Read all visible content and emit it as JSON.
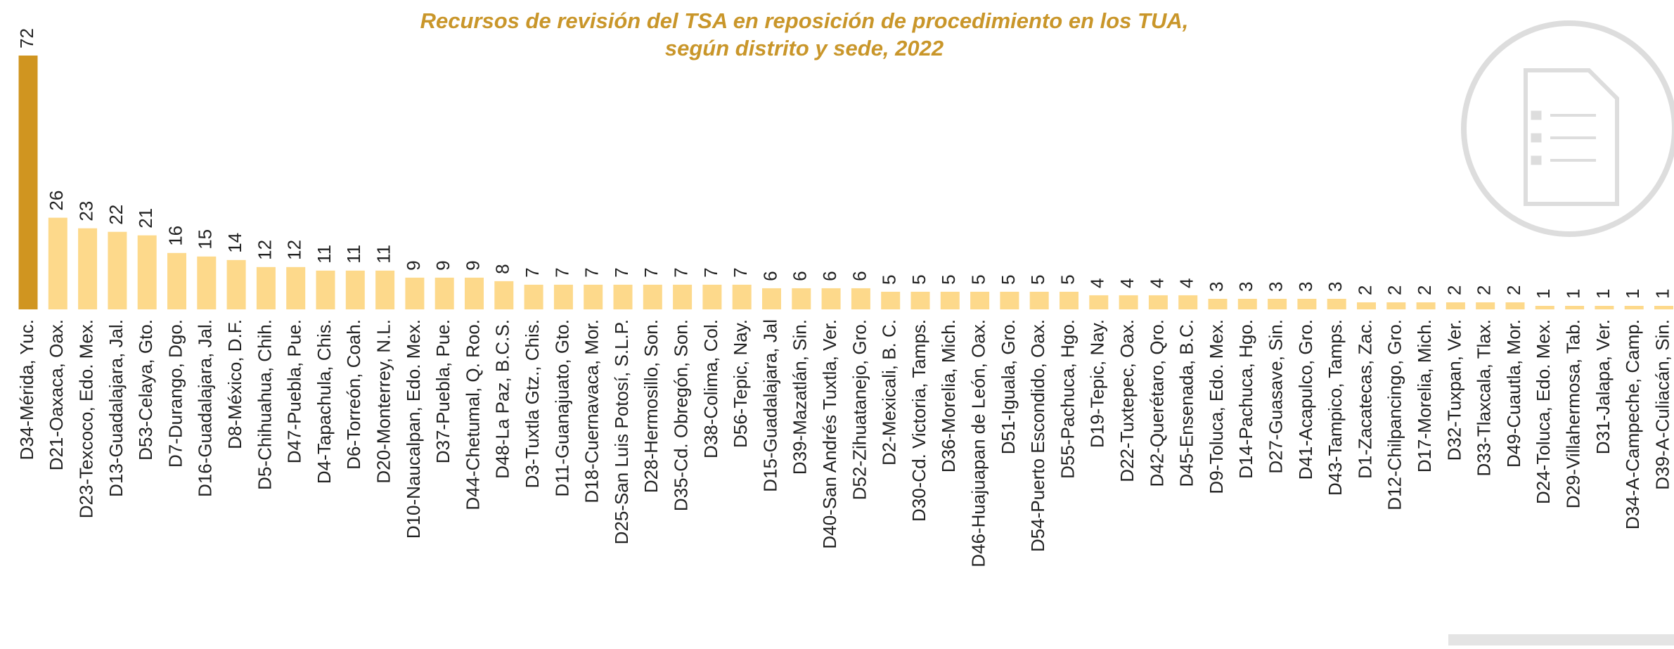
{
  "chart_data": {
    "type": "bar",
    "title": [
      "Recursos de revisión del TSA en reposición de procedimiento en los TUA,",
      "según distrito y sede, 2022"
    ],
    "categories": [
      "D34-Mérida, Yuc.",
      "D21-Oaxaca, Oax.",
      "D23-Texcoco, Edo. Mex.",
      "D13-Guadalajara, Jal.",
      "D53-Celaya, Gto.",
      "D7-Durango, Dgo.",
      "D16-Guadalajara, Jal.",
      "D8-México, D.F.",
      "D5-Chihuahua, Chih.",
      "D47-Puebla, Pue.",
      "D4-Tapachula, Chis.",
      "D6-Torreón, Coah.",
      "D20-Monterrey, N.L.",
      "D10-Naucalpan, Edo. Mex.",
      "D37-Puebla, Pue.",
      "D44-Chetumal, Q. Roo.",
      "D48-La Paz, B.C.S.",
      "D3-Tuxtla Gtz., Chis.",
      "D11-Guanajuato, Gto.",
      "D18-Cuernavaca, Mor.",
      "D25-San Luis Potosí, S.L.P.",
      "D28-Hermosillo, Son.",
      "D35-Cd. Obregón, Son.",
      "D38-Colima, Col.",
      "D56-Tepic, Nay.",
      "D15-Guadalajara, Jal",
      "D39-Mazatlán, Sin.",
      "D40-San Andrés Tuxtla, Ver.",
      "D52-Zihuatanejo,  Gro.",
      "D2-Mexicali, B. C.",
      "D30-Cd. Victoria, Tamps.",
      "D36-Morelia, Mich.",
      "D46-Huajuapan de León, Oax.",
      "D51-Iguala,  Gro.",
      "D54-Puerto Escondido, Oax.",
      "D55-Pachuca, Hgo.",
      "D19-Tepic, Nay.",
      "D22-Tuxtepec, Oax.",
      "D42-Querétaro, Qro.",
      "D45-Ensenada, B.C.",
      "D9-Toluca, Edo. Mex.",
      "D14-Pachuca, Hgo.",
      "D27-Guasave, Sin.",
      "D41-Acapulco, Gro.",
      "D43-Tampico, Tamps.",
      "D1-Zacatecas, Zac.",
      "D12-Chilpancingo, Gro.",
      "D17-Morelia, Mich.",
      "D32-Tuxpan, Ver.",
      "D33-Tlaxcala, Tlax.",
      "D49-Cuautla, Mor.",
      "D24-Toluca, Edo. Mex.",
      "D29-Villahermosa, Tab.",
      "D31-Jalapa, Ver.",
      "D34-A-Campeche, Camp.",
      "D39-A-Culiacán, Sin."
    ],
    "values": [
      72,
      26,
      23,
      22,
      21,
      16,
      15,
      14,
      12,
      12,
      11,
      11,
      11,
      9,
      9,
      9,
      8,
      7,
      7,
      7,
      7,
      7,
      7,
      7,
      7,
      6,
      6,
      6,
      6,
      5,
      5,
      5,
      5,
      5,
      5,
      5,
      4,
      4,
      4,
      4,
      3,
      3,
      3,
      3,
      3,
      2,
      2,
      2,
      2,
      2,
      2,
      1,
      1,
      1,
      1,
      1
    ],
    "color": "#fdd98b",
    "highlight_color": "#d09520"
  }
}
